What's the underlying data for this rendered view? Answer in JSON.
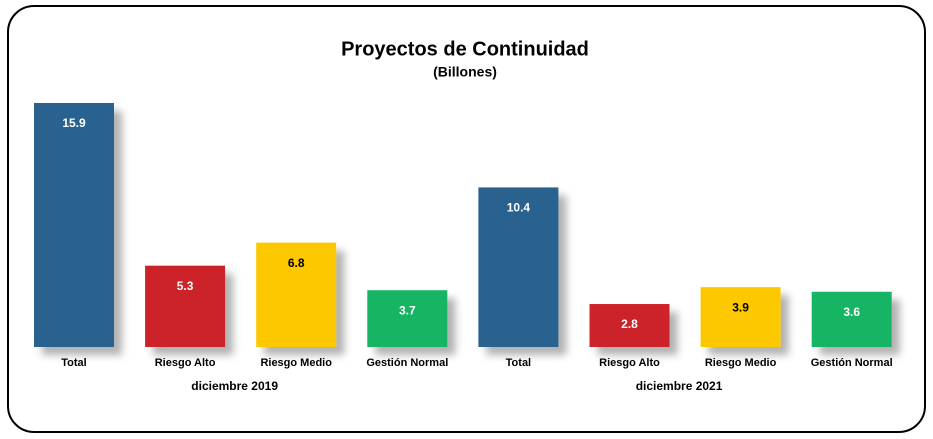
{
  "chart_data": {
    "type": "bar",
    "title": "Proyectos de Continuidad",
    "subtitle": "(Billones)",
    "categories": [
      "Total",
      "Riesgo Alto",
      "Riesgo Medio",
      "Gestión Normal",
      "Total",
      "Riesgo Alto",
      "Riesgo Medio",
      "Gestión Normal"
    ],
    "values": [
      15.9,
      5.3,
      6.8,
      3.7,
      10.4,
      2.8,
      3.9,
      3.6
    ],
    "colors": [
      "#2a628f",
      "#cc2229",
      "#fcc800",
      "#18b464",
      "#2a628f",
      "#cc2229",
      "#fcc800",
      "#18b464"
    ],
    "groups": [
      "diciembre 2019",
      "diciembre 2021"
    ]
  }
}
